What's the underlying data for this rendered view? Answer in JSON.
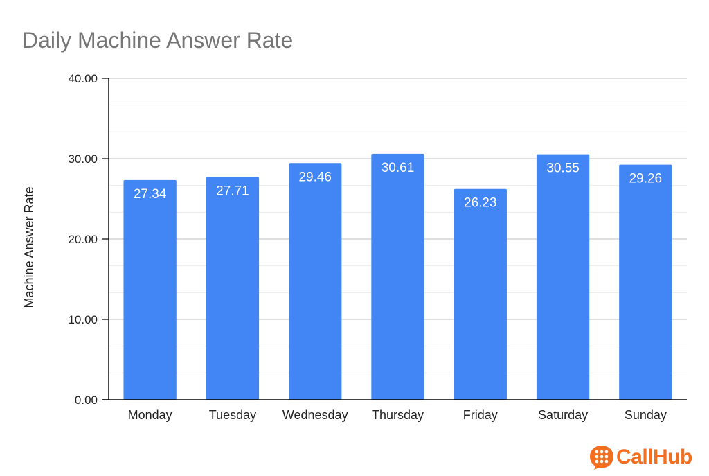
{
  "chart_data": {
    "type": "bar",
    "title": "Daily Machine Answer Rate",
    "xlabel": "",
    "ylabel": "Machine Answer Rate",
    "categories": [
      "Monday",
      "Tuesday",
      "Wednesday",
      "Thursday",
      "Friday",
      "Saturday",
      "Sunday"
    ],
    "values": [
      27.34,
      27.71,
      29.46,
      30.61,
      26.23,
      30.55,
      29.26
    ],
    "data_labels": [
      "27.34",
      "27.71",
      "29.46",
      "30.61",
      "26.23",
      "30.55",
      "29.26"
    ],
    "ylim": [
      0,
      40
    ],
    "y_ticks": [
      0,
      10,
      20,
      30,
      40
    ],
    "y_tick_labels": [
      "0.00",
      "10.00",
      "20.00",
      "30.00",
      "40.00"
    ],
    "minor_gridlines": true,
    "grid": true,
    "legend": "none",
    "bar_color": "#4285f4",
    "data_label_color": "#ffffff"
  },
  "branding": {
    "logo_text": "CallHub",
    "logo_icon": "speech-bubble-dialpad-icon",
    "logo_color": "#f26f21"
  },
  "colors": {
    "title": "#757575",
    "axis": "#000000",
    "major_grid": "#cccccc",
    "minor_grid": "#ebebeb"
  }
}
